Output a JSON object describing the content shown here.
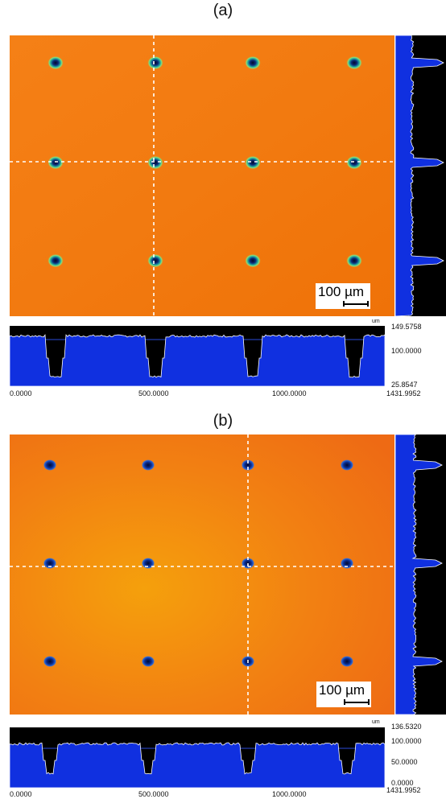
{
  "figure_a": {
    "label": "(a)",
    "scalebar_label": "100 µm",
    "unit": "um",
    "z_ticks": [
      "149.5758",
      "100.0000",
      "25.8547"
    ],
    "x_ticks": [
      "0.0000",
      "500.0000",
      "1000.0000",
      "1431.9952"
    ],
    "colors": {
      "background_start": "#f57a12",
      "background_end": "#f07008",
      "hole_rim": "#7ee07a",
      "hole_core": "#0b2a7a"
    }
  },
  "figure_b": {
    "label": "(b)",
    "scalebar_label": "100 µm",
    "unit": "um",
    "z_ticks": [
      "136.5320",
      "100.0000",
      "50.0000",
      "0.0000"
    ],
    "x_ticks": [
      "0.0000",
      "500.0000",
      "1000.0000",
      "1431.9952"
    ],
    "colors": {
      "background_start": "#f28a10",
      "background_end": "#f06a10",
      "hole_rim": "#2a66d8",
      "hole_core": "#061a5a"
    }
  },
  "chart_data": [
    {
      "type": "heatmap",
      "title": "(a)",
      "xlim": [
        0,
        1431.9952
      ],
      "zlim": [
        25.8547,
        149.5758
      ],
      "profile_unit": "um",
      "holes_grid": {
        "rows": 3,
        "cols": 4
      },
      "profile_depth_levels": {
        "surface": 120,
        "hole_bottom": 30
      }
    },
    {
      "type": "heatmap",
      "title": "(b)",
      "xlim": [
        0,
        1431.9952
      ],
      "zlim": [
        0,
        136.532
      ],
      "profile_unit": "um",
      "holes_grid": {
        "rows": 3,
        "cols": 4
      },
      "profile_depth_levels": {
        "surface": 115,
        "hole_bottom": 25
      }
    }
  ]
}
